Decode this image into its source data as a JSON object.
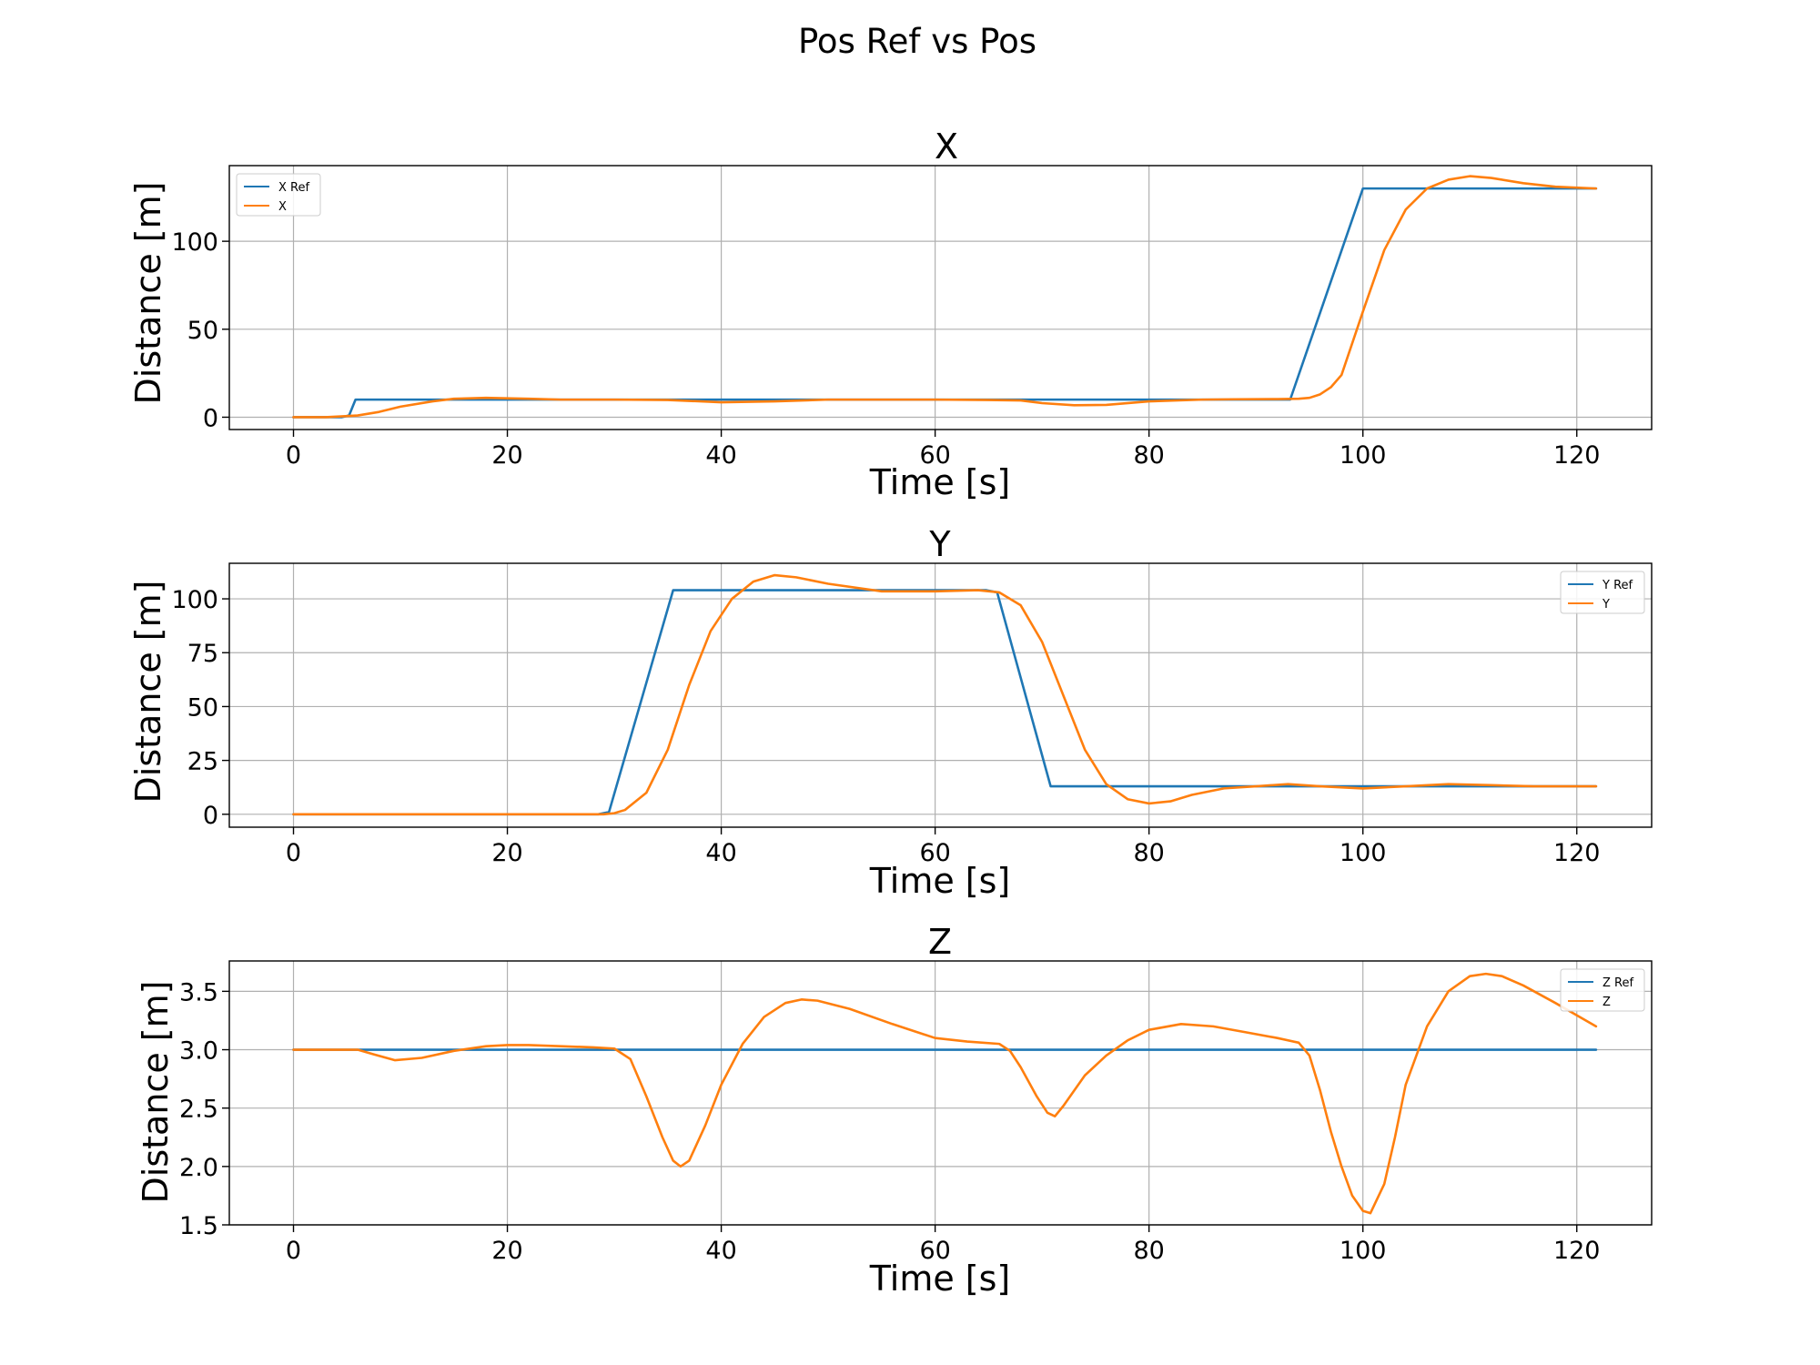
{
  "figure": {
    "suptitle": "Pos Ref vs Pos"
  },
  "colors": {
    "ref": "#1f77b4",
    "actual": "#ff7f0e"
  },
  "chart_data": [
    {
      "type": "line",
      "title": "X",
      "xlabel": "Time [s]",
      "ylabel": "Distance [m]",
      "xlim": [
        -6,
        127
      ],
      "ylim": [
        -7,
        143
      ],
      "xticks": [
        0,
        20,
        40,
        60,
        80,
        100,
        120
      ],
      "yticks": [
        0,
        50,
        100
      ],
      "ytick_labels": [
        "0",
        "50",
        "100"
      ],
      "grid": true,
      "legend": "upper-left",
      "series": [
        {
          "name": "X Ref",
          "color": "#1f77b4",
          "x": [
            0,
            4.5,
            5.2,
            5.8,
            93.2,
            100,
            121.8
          ],
          "y": [
            0,
            0,
            1,
            10,
            10,
            130,
            130
          ]
        },
        {
          "name": "X",
          "color": "#ff7f0e",
          "x": [
            0,
            3,
            6,
            8,
            10,
            13,
            15,
            18,
            22,
            25,
            30,
            35,
            40,
            45,
            50,
            55,
            60,
            65,
            68,
            70,
            73,
            76,
            80,
            85,
            88,
            92,
            94,
            95,
            96,
            97,
            98,
            100,
            102,
            104,
            106,
            108,
            110,
            112,
            115,
            118,
            121.8
          ],
          "y": [
            0,
            0,
            1,
            3,
            6,
            9,
            10.5,
            11,
            10.5,
            10,
            10,
            9.8,
            8.5,
            9,
            10,
            10,
            10,
            9.8,
            9.5,
            8,
            6.8,
            7,
            9,
            10,
            10.2,
            10.3,
            10.5,
            11,
            13,
            17,
            24,
            60,
            95,
            118,
            130,
            135,
            137,
            136,
            133,
            131,
            130
          ]
        }
      ]
    },
    {
      "type": "line",
      "title": "Y",
      "xlabel": "Time [s]",
      "ylabel": "Distance [m]",
      "xlim": [
        -6,
        127
      ],
      "ylim": [
        -6,
        116.5
      ],
      "xticks": [
        0,
        20,
        40,
        60,
        80,
        100,
        120
      ],
      "yticks": [
        0,
        25,
        50,
        75,
        100
      ],
      "ytick_labels": [
        "0",
        "25",
        "50",
        "75",
        "100"
      ],
      "grid": true,
      "legend": "upper-right",
      "series": [
        {
          "name": "Y Ref",
          "color": "#1f77b4",
          "x": [
            0,
            28.5,
            29.5,
            35.5,
            64.8,
            65.8,
            70.8,
            121.8
          ],
          "y": [
            0,
            0,
            1,
            104,
            104,
            103,
            13,
            13
          ]
        },
        {
          "name": "Y",
          "color": "#ff7f0e",
          "x": [
            0,
            29,
            30,
            31,
            33,
            35,
            37,
            39,
            41,
            43,
            45,
            47,
            50,
            55,
            60,
            64,
            66,
            68,
            70,
            72,
            74,
            76,
            78,
            80,
            82,
            84,
            87,
            90,
            93,
            96,
            100,
            104,
            108,
            112,
            116,
            121.8
          ],
          "y": [
            0,
            0,
            0.5,
            2,
            10,
            30,
            60,
            85,
            100,
            108,
            111,
            110,
            107,
            103.5,
            103.5,
            104,
            103,
            97,
            80,
            55,
            30,
            14,
            7,
            5,
            6,
            9,
            12,
            13,
            14,
            13,
            12,
            13,
            14,
            13.5,
            13,
            13
          ]
        }
      ]
    },
    {
      "type": "line",
      "title": "Z",
      "xlabel": "Time [s]",
      "ylabel": "Distance [m]",
      "xlim": [
        -6,
        127
      ],
      "ylim": [
        1.5,
        3.76
      ],
      "xticks": [
        0,
        20,
        40,
        60,
        80,
        100,
        120
      ],
      "yticks": [
        1.5,
        2.0,
        2.5,
        3.0,
        3.5
      ],
      "ytick_labels": [
        "1.5",
        "2.0",
        "2.5",
        "3.0",
        "3.5"
      ],
      "grid": true,
      "legend": "upper-right",
      "series": [
        {
          "name": "Z Ref",
          "color": "#1f77b4",
          "x": [
            0,
            121.8
          ],
          "y": [
            3,
            3
          ]
        },
        {
          "name": "Z",
          "color": "#ff7f0e",
          "x": [
            0,
            3,
            6,
            7.5,
            9.5,
            12,
            15,
            18,
            20,
            22,
            25,
            28,
            30,
            31.5,
            33,
            34.5,
            35.5,
            36.2,
            37,
            38.5,
            40,
            42,
            44,
            46,
            47.5,
            49,
            52,
            56,
            60,
            63,
            66,
            67,
            68,
            69.5,
            70.5,
            71.2,
            72,
            74,
            76,
            78,
            80,
            83,
            86,
            89,
            92,
            94,
            95,
            96,
            97,
            98,
            99,
            100,
            100.7,
            102,
            103,
            104,
            106,
            108,
            110,
            111.5,
            113,
            115,
            118,
            121.8
          ],
          "y": [
            3,
            3,
            3,
            2.96,
            2.91,
            2.93,
            2.99,
            3.03,
            3.04,
            3.04,
            3.03,
            3.02,
            3.01,
            2.92,
            2.6,
            2.25,
            2.05,
            2.0,
            2.05,
            2.35,
            2.7,
            3.05,
            3.28,
            3.4,
            3.43,
            3.42,
            3.35,
            3.22,
            3.1,
            3.07,
            3.05,
            2.99,
            2.85,
            2.6,
            2.46,
            2.43,
            2.52,
            2.78,
            2.95,
            3.08,
            3.17,
            3.22,
            3.2,
            3.15,
            3.1,
            3.06,
            2.95,
            2.65,
            2.3,
            2.0,
            1.75,
            1.62,
            1.6,
            1.85,
            2.25,
            2.7,
            3.2,
            3.5,
            3.63,
            3.65,
            3.63,
            3.55,
            3.4,
            3.2
          ]
        }
      ]
    }
  ]
}
